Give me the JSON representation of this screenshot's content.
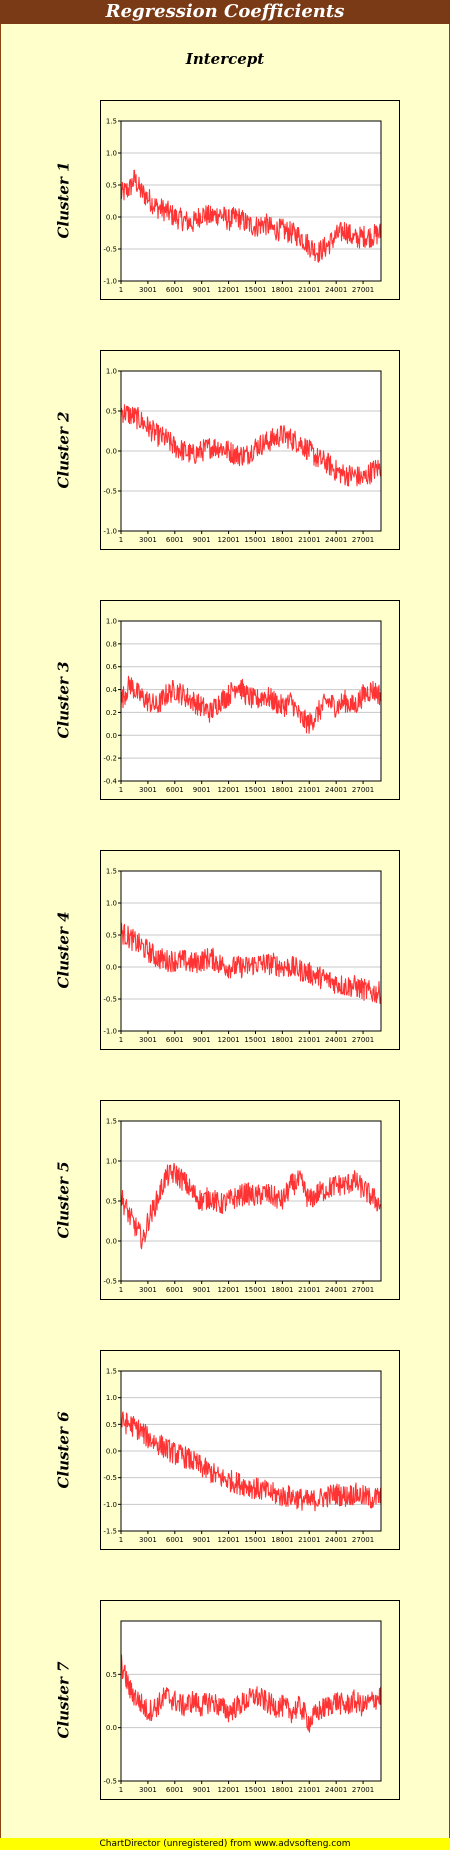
{
  "header": {
    "title": "Regression Coefficients"
  },
  "subtitle": "Intercept",
  "footer": {
    "text": "ChartDirector (unregistered) from www.advsofteng.com"
  },
  "colors": {
    "series": "#ff3333",
    "plot_bg": "#ffffff",
    "page_bg": "#ffffcc",
    "title_bg": "#7a3a16"
  },
  "chart_data": [
    {
      "type": "line",
      "panel_label": "Cluster 1",
      "title": "",
      "xlabel": "",
      "ylabel": "",
      "xlim": [
        1,
        29000
      ],
      "ylim": [
        -1.0,
        1.5
      ],
      "grid": true,
      "x_ticks": [
        "1",
        "3001",
        "6001",
        "9001",
        "12001",
        "15001",
        "18001",
        "21001",
        "24001",
        "27001"
      ],
      "y_ticks": [
        "1.5",
        "1.0",
        "0.5",
        "0.0",
        "-0.5",
        "-1.0"
      ],
      "x": [
        1,
        1000,
        1500,
        2200,
        3000,
        4000,
        5000,
        6000,
        7000,
        8000,
        9000,
        10000,
        11000,
        12000,
        13000,
        14000,
        15000,
        16000,
        17000,
        18000,
        19000,
        20000,
        21000,
        22000,
        23000,
        24000,
        25000,
        26000,
        27000,
        28000,
        29000
      ],
      "values": [
        0.35,
        0.45,
        0.6,
        0.4,
        0.3,
        0.15,
        0.1,
        0.0,
        -0.05,
        -0.1,
        0.05,
        0.0,
        0.05,
        -0.05,
        0.0,
        -0.1,
        -0.15,
        -0.1,
        -0.2,
        -0.2,
        -0.25,
        -0.3,
        -0.45,
        -0.55,
        -0.45,
        -0.3,
        -0.2,
        -0.35,
        -0.3,
        -0.3,
        -0.25
      ]
    },
    {
      "type": "line",
      "panel_label": "Cluster 2",
      "title": "",
      "xlabel": "",
      "ylabel": "",
      "xlim": [
        1,
        29000
      ],
      "ylim": [
        -1.0,
        1.0
      ],
      "grid": true,
      "x_ticks": [
        "1",
        "3001",
        "6001",
        "9001",
        "12001",
        "15001",
        "18001",
        "21001",
        "24001",
        "27001"
      ],
      "y_ticks": [
        "1.0",
        "0.5",
        "0.0",
        "-0.5",
        "-1.0"
      ],
      "x": [
        1,
        1000,
        2000,
        3000,
        4000,
        5000,
        6000,
        7000,
        8000,
        9000,
        10000,
        11000,
        12000,
        13000,
        14000,
        15000,
        16000,
        17000,
        18000,
        19000,
        20000,
        21000,
        22000,
        23000,
        24000,
        25000,
        26000,
        27000,
        28000,
        29000
      ],
      "values": [
        0.5,
        0.45,
        0.4,
        0.3,
        0.2,
        0.15,
        0.05,
        0.0,
        -0.05,
        0.0,
        0.05,
        0.05,
        0.0,
        -0.05,
        -0.05,
        0.05,
        0.1,
        0.15,
        0.2,
        0.15,
        0.1,
        0.0,
        -0.1,
        -0.15,
        -0.25,
        -0.3,
        -0.3,
        -0.35,
        -0.25,
        -0.2
      ]
    },
    {
      "type": "line",
      "panel_label": "Cluster 3",
      "title": "",
      "xlabel": "",
      "ylabel": "",
      "xlim": [
        1,
        29000
      ],
      "ylim": [
        -0.4,
        1.0
      ],
      "grid": true,
      "x_ticks": [
        "1",
        "3001",
        "6001",
        "9001",
        "12001",
        "15001",
        "18001",
        "21001",
        "24001",
        "27001"
      ],
      "y_ticks": [
        "1.0",
        "0.8",
        "0.6",
        "0.4",
        "0.2",
        "0.0",
        "-0.2",
        "-0.4"
      ],
      "x": [
        1,
        1000,
        2000,
        3000,
        4000,
        5000,
        6000,
        7000,
        8000,
        9000,
        10000,
        11000,
        12000,
        13000,
        14000,
        15000,
        16000,
        17000,
        18000,
        19000,
        20000,
        21000,
        22000,
        23000,
        24000,
        25000,
        26000,
        27000,
        28000,
        29000
      ],
      "values": [
        0.3,
        0.45,
        0.35,
        0.3,
        0.25,
        0.35,
        0.4,
        0.35,
        0.3,
        0.25,
        0.2,
        0.3,
        0.35,
        0.45,
        0.35,
        0.3,
        0.35,
        0.3,
        0.25,
        0.3,
        0.15,
        0.1,
        0.2,
        0.3,
        0.25,
        0.3,
        0.25,
        0.35,
        0.4,
        0.35
      ]
    },
    {
      "type": "line",
      "panel_label": "Cluster 4",
      "title": "",
      "xlabel": "",
      "ylabel": "",
      "xlim": [
        1,
        29000
      ],
      "ylim": [
        -1.0,
        1.5
      ],
      "grid": true,
      "x_ticks": [
        "1",
        "3001",
        "6001",
        "9001",
        "12001",
        "15001",
        "18001",
        "21001",
        "24001",
        "27001"
      ],
      "y_ticks": [
        "1.5",
        "1.0",
        "0.5",
        "0.0",
        "-0.5",
        "-1.0"
      ],
      "x": [
        1,
        1000,
        2000,
        3000,
        4000,
        5000,
        6000,
        7000,
        8000,
        9000,
        10000,
        11000,
        12000,
        13000,
        14000,
        15000,
        16000,
        17000,
        18000,
        19000,
        20000,
        21000,
        22000,
        23000,
        24000,
        25000,
        26000,
        27000,
        28000,
        29000
      ],
      "values": [
        0.55,
        0.45,
        0.35,
        0.25,
        0.15,
        0.1,
        0.1,
        0.1,
        0.05,
        0.1,
        0.15,
        0.05,
        0.0,
        0.0,
        0.0,
        0.05,
        0.05,
        0.05,
        0.0,
        0.0,
        -0.05,
        -0.1,
        -0.15,
        -0.2,
        -0.25,
        -0.3,
        -0.3,
        -0.35,
        -0.4,
        -0.4
      ]
    },
    {
      "type": "line",
      "panel_label": "Cluster 5",
      "title": "",
      "xlabel": "",
      "ylabel": "",
      "xlim": [
        1,
        29000
      ],
      "ylim": [
        -0.5,
        1.5
      ],
      "grid": true,
      "x_ticks": [
        "1",
        "3001",
        "6001",
        "9001",
        "12001",
        "15001",
        "18001",
        "21001",
        "24001",
        "27001"
      ],
      "y_ticks": [
        "1.5",
        "1.0",
        "0.5",
        "0.0",
        "-0.5"
      ],
      "x": [
        1,
        1000,
        2000,
        2500,
        3000,
        4000,
        5000,
        6000,
        7000,
        8000,
        9000,
        10000,
        11000,
        12000,
        13000,
        14000,
        15000,
        16000,
        17000,
        18000,
        19000,
        20000,
        21000,
        22000,
        23000,
        24000,
        25000,
        26000,
        27000,
        28000,
        29000
      ],
      "values": [
        0.55,
        0.3,
        0.1,
        0.0,
        0.25,
        0.5,
        0.8,
        0.85,
        0.75,
        0.6,
        0.5,
        0.55,
        0.45,
        0.5,
        0.55,
        0.6,
        0.55,
        0.6,
        0.55,
        0.5,
        0.7,
        0.75,
        0.5,
        0.6,
        0.65,
        0.7,
        0.7,
        0.75,
        0.65,
        0.55,
        0.45
      ]
    },
    {
      "type": "line",
      "panel_label": "Cluster 6",
      "title": "",
      "xlabel": "",
      "ylabel": "",
      "xlim": [
        1,
        29000
      ],
      "ylim": [
        -1.5,
        1.5
      ],
      "grid": true,
      "x_ticks": [
        "1",
        "3001",
        "6001",
        "9001",
        "12001",
        "15001",
        "18001",
        "21001",
        "24001",
        "27001"
      ],
      "y_ticks": [
        "1.5",
        "1.0",
        "0.5",
        "0.0",
        "-0.5",
        "-1.0",
        "-1.5"
      ],
      "x": [
        1,
        1000,
        2000,
        3000,
        4000,
        5000,
        6000,
        7000,
        8000,
        9000,
        10000,
        11000,
        12000,
        13000,
        14000,
        15000,
        16000,
        17000,
        18000,
        19000,
        20000,
        21000,
        22000,
        23000,
        24000,
        25000,
        26000,
        27000,
        28000,
        29000
      ],
      "values": [
        0.55,
        0.5,
        0.4,
        0.25,
        0.15,
        0.05,
        -0.05,
        -0.1,
        -0.2,
        -0.3,
        -0.4,
        -0.5,
        -0.55,
        -0.6,
        -0.65,
        -0.7,
        -0.75,
        -0.8,
        -0.85,
        -0.85,
        -0.9,
        -0.95,
        -0.9,
        -0.85,
        -0.8,
        -0.85,
        -0.8,
        -0.85,
        -0.9,
        -0.85
      ]
    },
    {
      "type": "line",
      "panel_label": "Cluster 7",
      "title": "",
      "xlabel": "",
      "ylabel": "",
      "xlim": [
        1,
        29000
      ],
      "ylim": [
        -0.5,
        1.0
      ],
      "grid": true,
      "x_ticks": [
        "1",
        "3001",
        "6001",
        "9001",
        "12001",
        "15001",
        "18001",
        "21001",
        "24001",
        "27001"
      ],
      "y_ticks": [
        "0.5",
        "0.0",
        "-0.5"
      ],
      "x": [
        1,
        1000,
        2000,
        3000,
        4000,
        5000,
        6000,
        7000,
        8000,
        9000,
        10000,
        11000,
        12000,
        13000,
        14000,
        15000,
        16000,
        17000,
        18000,
        19000,
        20000,
        21000,
        22000,
        23000,
        24000,
        25000,
        26000,
        27000,
        28000,
        29000
      ],
      "values": [
        0.6,
        0.35,
        0.25,
        0.15,
        0.2,
        0.3,
        0.25,
        0.2,
        0.25,
        0.2,
        0.25,
        0.2,
        0.15,
        0.2,
        0.25,
        0.3,
        0.25,
        0.2,
        0.2,
        0.15,
        0.2,
        0.05,
        0.15,
        0.2,
        0.25,
        0.2,
        0.25,
        0.2,
        0.25,
        0.3
      ]
    }
  ]
}
